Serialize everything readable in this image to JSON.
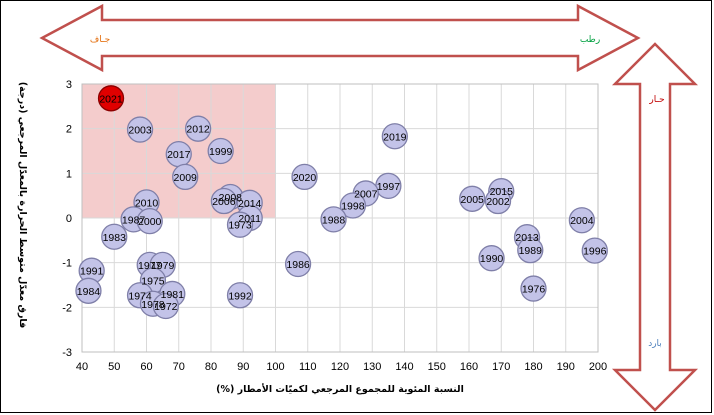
{
  "chart_data": {
    "type": "scatter",
    "xlabel": "النسبة المئوية للمجموع المرجعي لكميّات الأمطار  (%)",
    "ylabel": "فارق  معدّل متوسط الحرارة بالمعدّل المرجعي (درجة)",
    "xlim": [
      40,
      200
    ],
    "ylim": [
      -3,
      3
    ],
    "xticks": [
      "40",
      "50",
      "60",
      "70",
      "80",
      "90",
      "100",
      "110",
      "120",
      "130",
      "140",
      "150",
      "160",
      "170",
      "180",
      "190",
      "200"
    ],
    "yticks": [
      "3",
      "2",
      "1",
      "0",
      "-1",
      "-2",
      "-3"
    ],
    "highlight_zone": {
      "x": [
        40,
        100
      ],
      "y": [
        0,
        3
      ],
      "color": "#f4cccc"
    },
    "arrows": {
      "dry": "جـاف",
      "wet": "رطب",
      "hot": "حـار",
      "cold": "بارد"
    },
    "colors": {
      "point_fill": "#c3c3e8",
      "point_stroke": "#7f7fa8",
      "highlight_fill": "#e00000",
      "arrow_stroke": "#c0504d",
      "dry_text": "#e36c0a",
      "wet_text": "#00a040",
      "hot_text": "#c00000",
      "cold_text": "#4f81bd"
    },
    "points": [
      {
        "label": "2021",
        "x": 49,
        "y": 2.68,
        "highlight": true
      },
      {
        "label": "2003",
        "x": 58,
        "y": 1.98
      },
      {
        "label": "2012",
        "x": 76,
        "y": 2.0
      },
      {
        "label": "2019",
        "x": 137,
        "y": 1.83
      },
      {
        "label": "2017",
        "x": 70,
        "y": 1.43
      },
      {
        "label": "1999",
        "x": 83,
        "y": 1.5
      },
      {
        "label": "2009",
        "x": 72,
        "y": 0.92
      },
      {
        "label": "2020",
        "x": 109,
        "y": 0.92
      },
      {
        "label": "1997",
        "x": 135,
        "y": 0.72
      },
      {
        "label": "2007",
        "x": 128,
        "y": 0.55
      },
      {
        "label": "1998",
        "x": 124,
        "y": 0.28
      },
      {
        "label": "2008",
        "x": 86,
        "y": 0.47
      },
      {
        "label": "2006",
        "x": 84,
        "y": 0.38
      },
      {
        "label": "2014",
        "x": 92,
        "y": 0.34
      },
      {
        "label": "2010",
        "x": 60,
        "y": 0.35
      },
      {
        "label": "1987",
        "x": 56,
        "y": -0.03
      },
      {
        "label": "2000",
        "x": 61,
        "y": -0.07
      },
      {
        "label": "2011",
        "x": 92,
        "y": 0.0
      },
      {
        "label": "1973",
        "x": 89,
        "y": -0.15
      },
      {
        "label": "1988",
        "x": 118,
        "y": -0.03
      },
      {
        "label": "1983",
        "x": 50,
        "y": -0.42
      },
      {
        "label": "2005",
        "x": 161,
        "y": 0.43
      },
      {
        "label": "2015",
        "x": 170,
        "y": 0.6
      },
      {
        "label": "2002",
        "x": 169,
        "y": 0.38
      },
      {
        "label": "2004",
        "x": 195,
        "y": -0.05
      },
      {
        "label": "2013",
        "x": 178,
        "y": -0.43
      },
      {
        "label": "1989",
        "x": 179,
        "y": -0.72
      },
      {
        "label": "1990",
        "x": 167,
        "y": -0.9
      },
      {
        "label": "1996",
        "x": 199,
        "y": -0.73
      },
      {
        "label": "1976",
        "x": 180,
        "y": -1.58
      },
      {
        "label": "1986",
        "x": 107,
        "y": -1.03
      },
      {
        "label": "1991",
        "x": 43,
        "y": -1.18
      },
      {
        "label": "1977",
        "x": 61,
        "y": -1.05
      },
      {
        "label": "1979",
        "x": 65,
        "y": -1.05
      },
      {
        "label": "1975",
        "x": 62,
        "y": -1.4
      },
      {
        "label": "1984",
        "x": 42,
        "y": -1.63
      },
      {
        "label": "1974",
        "x": 58,
        "y": -1.73
      },
      {
        "label": "1981",
        "x": 68,
        "y": -1.7
      },
      {
        "label": "1978",
        "x": 62,
        "y": -1.92
      },
      {
        "label": "1972",
        "x": 66,
        "y": -1.97
      },
      {
        "label": "1992",
        "x": 89,
        "y": -1.73
      }
    ]
  }
}
